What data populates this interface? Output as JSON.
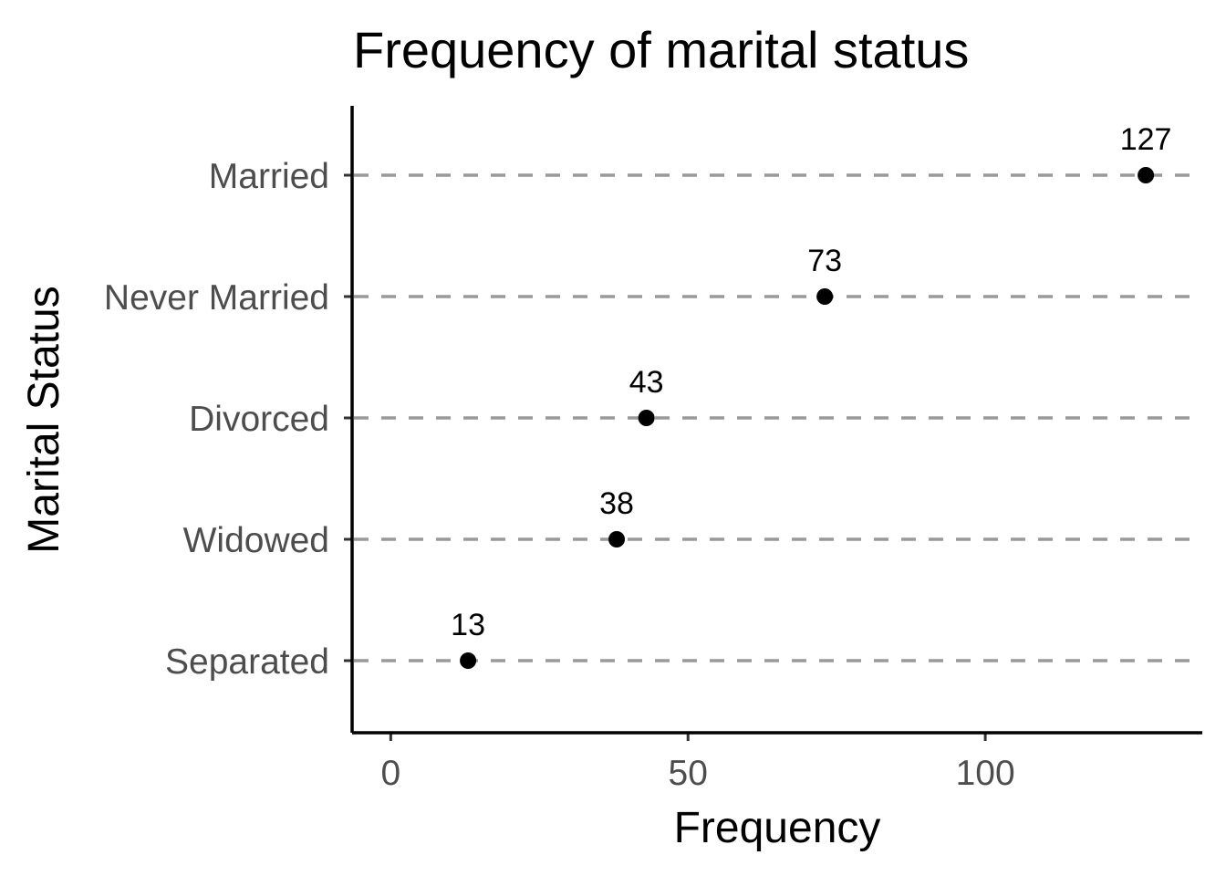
{
  "chart_data": {
    "type": "scatter",
    "title": "Frequency of marital status",
    "xlabel": "Frequency",
    "ylabel": "Marital Status",
    "categories": [
      "Married",
      "Never Married",
      "Divorced",
      "Widowed",
      "Separated"
    ],
    "values": [
      127,
      73,
      43,
      38,
      13
    ],
    "data_labels": [
      "127",
      "73",
      "43",
      "38",
      "13"
    ],
    "x_ticks": [
      0,
      50,
      100
    ],
    "x_tick_labels": [
      "0",
      "50",
      "100"
    ],
    "xlim": [
      -6.5,
      136.5
    ],
    "grid": "horizontal dashed",
    "legend": "none",
    "point_color": "#000000",
    "grid_color": "#999999"
  }
}
